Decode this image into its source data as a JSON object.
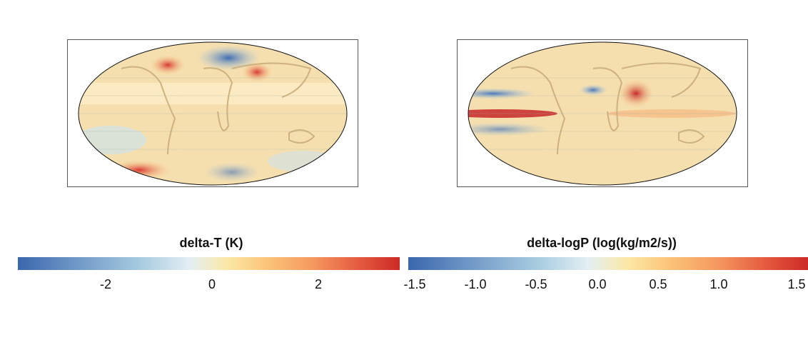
{
  "maps": [
    {
      "name": "delta-T map",
      "variable": "delta-T (K)"
    },
    {
      "name": "delta-logP map",
      "variable": "delta-logP (log(kg/m2/s))"
    }
  ],
  "colorbars": [
    {
      "title": "delta-T (K)",
      "range": [
        -3.6,
        3.6
      ],
      "ticks": [
        "-2",
        "0",
        "2"
      ]
    },
    {
      "title": "delta-logP (log(kg/m2/s))",
      "range": [
        -1.6,
        1.6
      ],
      "ticks": [
        "-1.5",
        "-1.0",
        "-0.5",
        "0.0",
        "0.5",
        "1.0",
        "1.5"
      ]
    }
  ],
  "colors": {
    "low": "#3a67ad",
    "mid": "#f1efd8",
    "high": "#cc2a26",
    "land_outline": "#c9ad7a"
  }
}
